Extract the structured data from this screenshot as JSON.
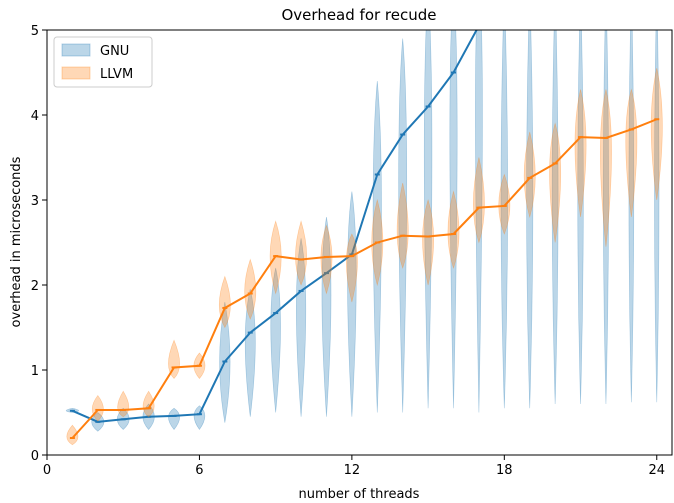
{
  "chart_data": {
    "type": "violin",
    "title": "Overhead for recude",
    "xlabel": "number of threads",
    "ylabel": "overhead in microseconds",
    "x": [
      1,
      2,
      3,
      4,
      5,
      6,
      7,
      8,
      9,
      10,
      11,
      12,
      13,
      14,
      15,
      16,
      17,
      18,
      19,
      20,
      21,
      22,
      23,
      24
    ],
    "xlim": [
      0,
      24.6
    ],
    "xticks": [
      0,
      6,
      12,
      18,
      24
    ],
    "ylim": [
      0,
      5
    ],
    "yticks": [
      0,
      1,
      2,
      3,
      4,
      5
    ],
    "legend": "upper left",
    "series": [
      {
        "name": "GNU",
        "color": "#1f77b4",
        "values": [
          0.52,
          0.39,
          0.42,
          0.45,
          0.46,
          0.48,
          1.1,
          1.44,
          1.67,
          1.93,
          2.14,
          2.36,
          3.3,
          3.77,
          4.1,
          4.5,
          5.05,
          null,
          null,
          null,
          null,
          null,
          null,
          null
        ],
        "min": [
          0.5,
          0.28,
          0.3,
          0.3,
          0.3,
          0.3,
          0.38,
          0.45,
          0.5,
          0.45,
          0.45,
          0.45,
          0.5,
          0.5,
          0.55,
          0.55,
          0.5,
          0.55,
          0.55,
          0.6,
          0.6,
          0.6,
          0.62,
          0.62
        ],
        "max": [
          0.55,
          0.5,
          0.55,
          0.6,
          0.55,
          0.58,
          1.8,
          1.95,
          2.2,
          2.55,
          2.8,
          3.1,
          4.4,
          4.9,
          5.5,
          5.5,
          5.5,
          5.5,
          5.5,
          5.5,
          5.5,
          5.5,
          5.5,
          5.5
        ]
      },
      {
        "name": "LLVM",
        "color": "#ff7f0e",
        "values": [
          0.2,
          0.53,
          0.53,
          0.55,
          1.03,
          1.05,
          1.73,
          1.9,
          2.34,
          2.3,
          2.33,
          2.34,
          2.5,
          2.58,
          2.57,
          2.6,
          2.91,
          2.93,
          3.26,
          3.43,
          3.74,
          3.73,
          3.83,
          3.95
        ],
        "min": [
          0.12,
          0.4,
          0.45,
          0.45,
          0.9,
          0.9,
          1.5,
          1.6,
          1.9,
          2.0,
          1.9,
          1.8,
          2.0,
          2.2,
          2.0,
          2.2,
          2.5,
          2.6,
          2.8,
          2.5,
          2.8,
          2.45,
          2.8,
          3.0
        ],
        "max": [
          0.35,
          0.7,
          0.75,
          0.75,
          1.35,
          1.2,
          2.1,
          2.3,
          2.75,
          2.75,
          2.7,
          2.6,
          3.0,
          3.2,
          3.0,
          3.1,
          3.5,
          3.3,
          3.8,
          3.9,
          4.3,
          4.3,
          4.3,
          4.55
        ]
      }
    ]
  }
}
